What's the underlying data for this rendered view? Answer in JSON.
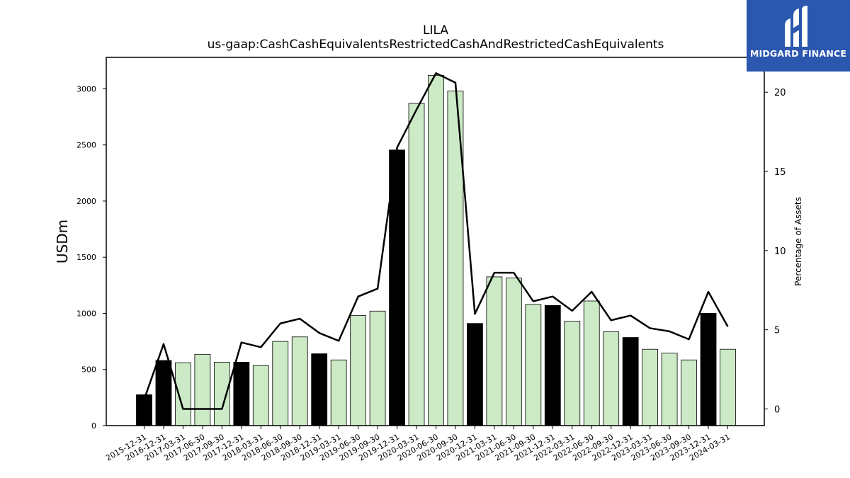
{
  "chart_data": {
    "type": "bar",
    "title": "LILA",
    "subtitle": "us-gaap:CashCashEquivalentsRestrictedCashAndRestrictedCashEquivalents",
    "ylabel": "USDm",
    "ylabel_right": "Percentage of Assets",
    "ylim": [
      0,
      3280
    ],
    "ylim_right": [
      -1.05,
      22.2
    ],
    "yticks": [
      0,
      500,
      1000,
      1500,
      2000,
      2500,
      3000
    ],
    "yticks_right": [
      0,
      5,
      10,
      15,
      20
    ],
    "grid": false,
    "categories": [
      "2015-12-31",
      "2016-12-31",
      "2017-03-31",
      "2017-06-30",
      "2017-09-30",
      "2017-12-31",
      "2018-03-31",
      "2018-06-30",
      "2018-09-30",
      "2018-12-31",
      "2019-03-31",
      "2019-06-30",
      "2019-09-30",
      "2019-12-31",
      "2020-03-31",
      "2020-06-30",
      "2020-09-30",
      "2020-12-31",
      "2021-03-31",
      "2021-06-30",
      "2021-09-30",
      "2021-12-31",
      "2022-03-31",
      "2022-06-30",
      "2022-09-30",
      "2022-12-31",
      "2023-03-31",
      "2023-06-30",
      "2023-09-30",
      "2023-12-31",
      "2024-03-31"
    ],
    "series": [
      {
        "type": "bar",
        "values": [
          275,
          580,
          560,
          635,
          565,
          565,
          535,
          750,
          790,
          640,
          585,
          980,
          1020,
          2455,
          2870,
          3120,
          2980,
          910,
          1325,
          1315,
          1080,
          1070,
          930,
          1110,
          835,
          785,
          680,
          645,
          585,
          1000,
          680
        ],
        "annual": [
          true,
          true,
          false,
          false,
          false,
          true,
          false,
          false,
          false,
          true,
          false,
          false,
          false,
          true,
          false,
          false,
          false,
          true,
          false,
          false,
          false,
          true,
          false,
          false,
          false,
          true,
          false,
          false,
          false,
          true,
          false
        ],
        "color_annual": "#000000",
        "color_quarter": "#cdeac6"
      },
      {
        "type": "line",
        "axis": "right",
        "values": [
          0.6,
          4.1,
          0.0,
          0.0,
          0.0,
          4.2,
          3.9,
          5.4,
          5.7,
          4.8,
          4.3,
          7.1,
          7.6,
          16.5,
          18.9,
          21.2,
          20.6,
          6.0,
          8.6,
          8.6,
          6.8,
          7.1,
          6.2,
          7.4,
          5.6,
          5.9,
          5.1,
          4.9,
          4.4,
          7.4,
          5.2
        ],
        "color": "#000000"
      }
    ]
  },
  "logo": {
    "text": "MIDGARD FINANCE",
    "background": "#2b57ae"
  }
}
